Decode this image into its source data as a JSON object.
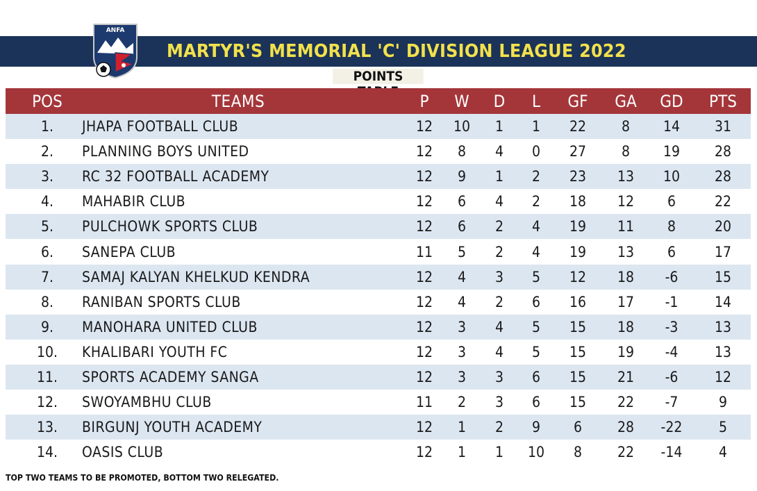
{
  "header": {
    "logo_text": "ANFA",
    "title": "MARTYR'S MEMORIAL 'C' DIVISION LEAGUE 2022",
    "subtitle": "POINTS TABLE"
  },
  "colors": {
    "banner": "#1b3358",
    "title_text": "#f2e14c",
    "table_header": "#a4363a",
    "row_alt": "#dce6f1"
  },
  "table": {
    "columns": [
      "POS",
      "TEAMS",
      "P",
      "W",
      "D",
      "L",
      "GF",
      "GA",
      "GD",
      "PTS"
    ],
    "rows": [
      {
        "pos": "1.",
        "team": "JHAPA FOOTBALL CLUB",
        "p": "12",
        "w": "10",
        "d": "1",
        "l": "1",
        "gf": "22",
        "ga": "8",
        "gd": "14",
        "pts": "31"
      },
      {
        "pos": "2.",
        "team": "PLANNING BOYS UNITED",
        "p": "12",
        "w": "8",
        "d": "4",
        "l": "0",
        "gf": "27",
        "ga": "8",
        "gd": "19",
        "pts": "28"
      },
      {
        "pos": "3.",
        "team": "RC 32 FOOTBALL ACADEMY",
        "p": "12",
        "w": "9",
        "d": "1",
        "l": "2",
        "gf": "23",
        "ga": "13",
        "gd": "10",
        "pts": "28"
      },
      {
        "pos": "4.",
        "team": "MAHABIR CLUB",
        "p": "12",
        "w": "6",
        "d": "4",
        "l": "2",
        "gf": "18",
        "ga": "12",
        "gd": "6",
        "pts": "22"
      },
      {
        "pos": "5.",
        "team": "PULCHOWK SPORTS CLUB",
        "p": "12",
        "w": "6",
        "d": "2",
        "l": "4",
        "gf": "19",
        "ga": "11",
        "gd": "8",
        "pts": "20"
      },
      {
        "pos": "6.",
        "team": "SANEPA CLUB",
        "p": "11",
        "w": "5",
        "d": "2",
        "l": "4",
        "gf": "19",
        "ga": "13",
        "gd": "6",
        "pts": "17"
      },
      {
        "pos": "7.",
        "team": "SAMAJ KALYAN KHELKUD KENDRA",
        "p": "12",
        "w": "4",
        "d": "3",
        "l": "5",
        "gf": "12",
        "ga": "18",
        "gd": "-6",
        "pts": "15"
      },
      {
        "pos": "8.",
        "team": "RANIBAN SPORTS CLUB",
        "p": "12",
        "w": "4",
        "d": "2",
        "l": "6",
        "gf": "16",
        "ga": "17",
        "gd": "-1",
        "pts": "14"
      },
      {
        "pos": "9.",
        "team": "MANOHARA UNITED CLUB",
        "p": "12",
        "w": "3",
        "d": "4",
        "l": "5",
        "gf": "15",
        "ga": "18",
        "gd": "-3",
        "pts": "13"
      },
      {
        "pos": "10.",
        "team": "KHALIBARI YOUTH FC",
        "p": "12",
        "w": "3",
        "d": "4",
        "l": "5",
        "gf": "15",
        "ga": "19",
        "gd": "-4",
        "pts": "13"
      },
      {
        "pos": "11.",
        "team": "SPORTS ACADEMY SANGA",
        "p": "12",
        "w": "3",
        "d": "3",
        "l": "6",
        "gf": "15",
        "ga": "21",
        "gd": "-6",
        "pts": "12"
      },
      {
        "pos": "12.",
        "team": "SWOYAMBHU CLUB",
        "p": "11",
        "w": "2",
        "d": "3",
        "l": "6",
        "gf": "15",
        "ga": "22",
        "gd": "-7",
        "pts": "9"
      },
      {
        "pos": "13.",
        "team": "BIRGUNJ YOUTH ACADEMY",
        "p": "12",
        "w": "1",
        "d": "2",
        "l": "9",
        "gf": "6",
        "ga": "28",
        "gd": "-22",
        "pts": "5"
      },
      {
        "pos": "14.",
        "team": "OASIS CLUB",
        "p": "12",
        "w": "1",
        "d": "1",
        "l": "10",
        "gf": "8",
        "ga": "22",
        "gd": "-14",
        "pts": "4"
      }
    ]
  },
  "footnote": "TOP TWO TEAMS TO BE PROMOTED, BOTTOM TWO RELEGATED."
}
